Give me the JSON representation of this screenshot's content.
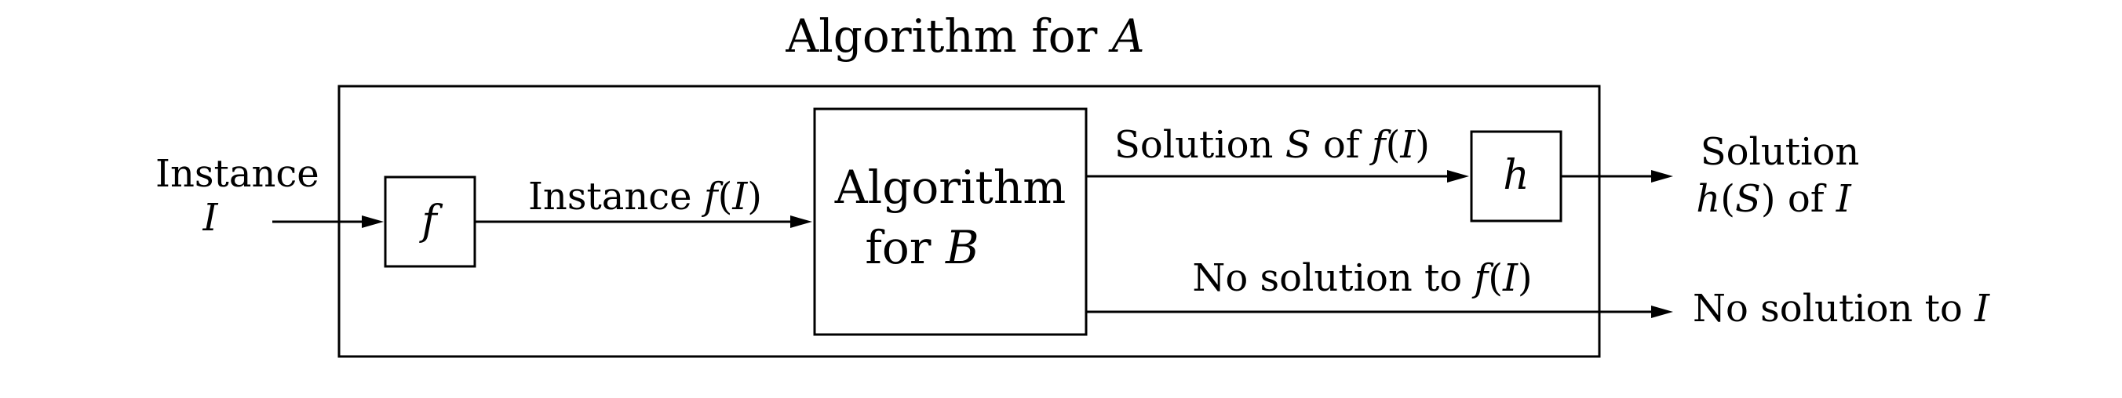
{
  "title": {
    "prefix": "Algorithm for ",
    "variable": "A"
  },
  "input": {
    "line1": "Instance",
    "line2": "I"
  },
  "f_box": {
    "label": "f"
  },
  "edge_f_to_b": {
    "prefix": "Instance ",
    "func": "f",
    "open": "(",
    "var": "I",
    "close": ")"
  },
  "algorithm_b": {
    "line1": "Algorithm",
    "line2_prefix": "for ",
    "variable": "B"
  },
  "edge_solution": {
    "prefix": "Solution ",
    "var_s": "S",
    "middle": " of ",
    "func": "f",
    "open": "(",
    "var": "I",
    "close": ")"
  },
  "h_box": {
    "label": "h"
  },
  "output_solution": {
    "line1": "Solution",
    "func": "h",
    "open": "(",
    "var_s": "S",
    "close": ")",
    "middle": " of ",
    "var": "I"
  },
  "edge_no_solution": {
    "prefix": "No solution to ",
    "func": "f",
    "open": "(",
    "var": "I",
    "close": ")"
  },
  "output_no_solution": {
    "prefix": "No solution to ",
    "var": "I"
  }
}
